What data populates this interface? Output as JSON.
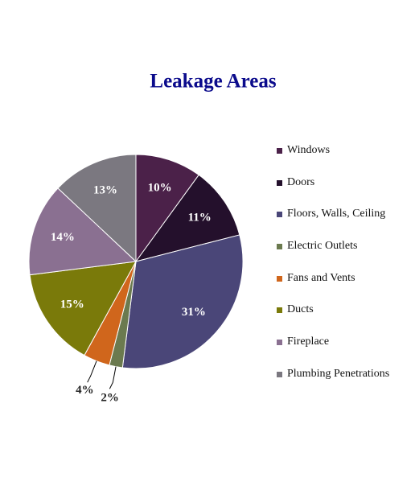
{
  "chart_data": {
    "type": "pie",
    "title": "Leakage Areas",
    "categories": [
      "Windows",
      "Doors",
      "Floors, Walls, Ceiling",
      "Electric Outlets",
      "Fans  and Vents",
      "Ducts",
      "Fireplace",
      "Plumbing Penetrations"
    ],
    "values": [
      10,
      11,
      31,
      2,
      4,
      15,
      14,
      13
    ],
    "value_labels": [
      "10%",
      "11%",
      "31%",
      "2%",
      "4%",
      "15%",
      "14%",
      "13%"
    ],
    "colors": [
      "#4b2149",
      "#24102c",
      "#4a4678",
      "#6b7a4f",
      "#d0661c",
      "#7a7a0a",
      "#8a7091",
      "#7b7880"
    ],
    "legend": "right"
  }
}
